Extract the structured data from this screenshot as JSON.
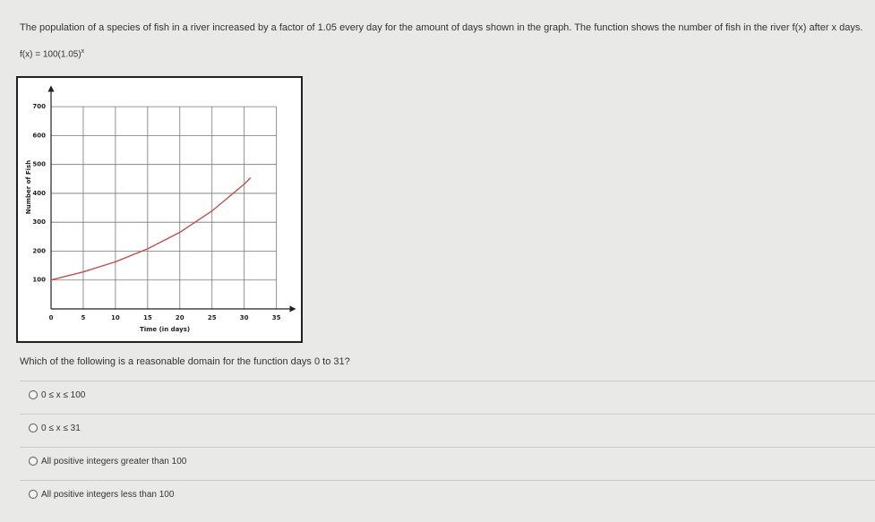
{
  "intro": "The population of a species of fish in a river increased by a factor of 1.05 every day for the amount of days shown in the graph. The function shows the number of fish in the river f(x) after x days.",
  "function": {
    "base": "f(x) = 100(1.05)",
    "exponent": "x"
  },
  "chart_data": {
    "type": "line",
    "x": [
      0,
      5,
      10,
      15,
      20,
      25,
      30,
      31
    ],
    "values": [
      100,
      128,
      163,
      208,
      265,
      339,
      432,
      454
    ],
    "color": "#c0504d",
    "xlabel": "Time (in days)",
    "ylabel": "Number of Fish",
    "xlim": [
      0,
      37
    ],
    "ylim": [
      0,
      750
    ],
    "xticks": [
      0,
      5,
      10,
      15,
      20,
      25,
      30,
      35
    ],
    "yticks": [
      100,
      200,
      300,
      400,
      500,
      600,
      700
    ],
    "grid": true
  },
  "question": "Which of the following is a reasonable domain for the function days 0 to 31?",
  "options": [
    "0 ≤ x ≤ 100",
    "0 ≤ x ≤ 31",
    "All positive integers greater than 100",
    "All positive integers less than 100"
  ]
}
